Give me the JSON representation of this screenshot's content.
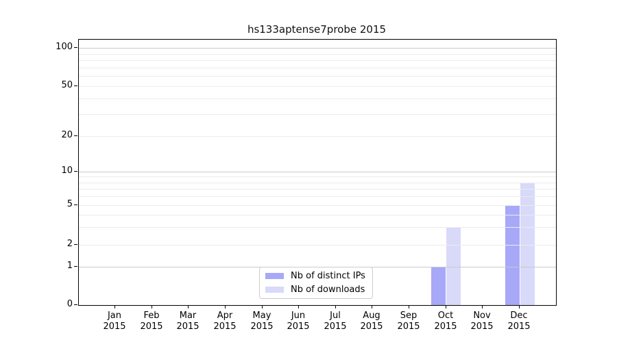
{
  "chart_data": {
    "type": "bar",
    "title": "hs133aptense7probe 2015",
    "categories": [
      {
        "month": "Jan",
        "year": "2015"
      },
      {
        "month": "Feb",
        "year": "2015"
      },
      {
        "month": "Mar",
        "year": "2015"
      },
      {
        "month": "Apr",
        "year": "2015"
      },
      {
        "month": "May",
        "year": "2015"
      },
      {
        "month": "Jun",
        "year": "2015"
      },
      {
        "month": "Jul",
        "year": "2015"
      },
      {
        "month": "Aug",
        "year": "2015"
      },
      {
        "month": "Sep",
        "year": "2015"
      },
      {
        "month": "Oct",
        "year": "2015"
      },
      {
        "month": "Nov",
        "year": "2015"
      },
      {
        "month": "Dec",
        "year": "2015"
      }
    ],
    "series": [
      {
        "name": "Nb of distinct IPs",
        "color": "#a8a8f8",
        "values": [
          0,
          0,
          0,
          0,
          0,
          0,
          0,
          0,
          0,
          1,
          0,
          5
        ]
      },
      {
        "name": "Nb of downloads",
        "color": "#d9d9fa",
        "values": [
          0,
          0,
          0,
          0,
          0,
          0,
          0,
          0,
          0,
          3,
          0,
          8
        ]
      }
    ],
    "yaxis": {
      "scale": "symlog",
      "ylim": [
        0,
        100
      ],
      "tick_values": [
        0,
        1,
        2,
        5,
        10,
        20,
        50,
        100
      ],
      "tick_labels": [
        "0",
        "1",
        "2",
        "5",
        "10",
        "20",
        "50",
        "100"
      ]
    },
    "grid": "on",
    "legend": {
      "position": "lower center"
    }
  },
  "colors": {
    "major_grid": "#c9c9c9",
    "minor_grid": "#ececec",
    "spine": "#000000",
    "background": "#ffffff"
  }
}
